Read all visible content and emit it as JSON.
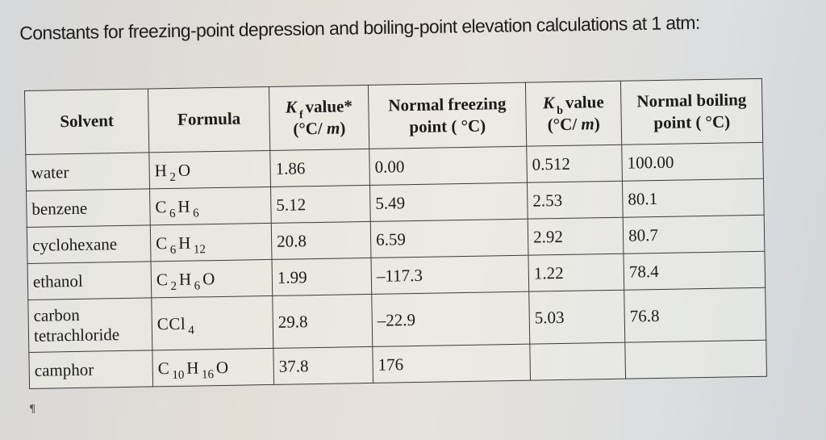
{
  "document": {
    "title": "Constants for freezing-point depression and boiling-point elevation calculations at 1 atm:",
    "paragraph_mark": "¶"
  },
  "table": {
    "headers": {
      "solvent": "Solvent",
      "formula": "Formula",
      "kf": {
        "symbol": "K",
        "subscript": "f",
        "label": "value*",
        "units_open": "(°C/ ",
        "units_var": "m",
        "units_close": ")"
      },
      "nfp": {
        "line1": "Normal freezing",
        "line2": "point ( °C)"
      },
      "kb": {
        "symbol": "K",
        "subscript": "b",
        "label": "value",
        "units_open": "(°C/ ",
        "units_var": "m",
        "units_close": ")"
      },
      "nbp": {
        "line1": "Normal boiling",
        "line2": "point ( °C)"
      }
    },
    "rows": [
      {
        "solvent": "water",
        "formula": [
          [
            "H",
            "2"
          ],
          [
            "O",
            ""
          ]
        ],
        "kf": "1.86",
        "nfp": "0.00",
        "kb": "0.512",
        "nbp": "100.00"
      },
      {
        "solvent": "benzene",
        "formula": [
          [
            "C",
            "6"
          ],
          [
            "H",
            "6"
          ]
        ],
        "kf": "5.12",
        "nfp": "5.49",
        "kb": "2.53",
        "nbp": "80.1"
      },
      {
        "solvent": "cyclohexane",
        "formula": [
          [
            "C",
            "6"
          ],
          [
            "H",
            "12"
          ]
        ],
        "kf": "20.8",
        "nfp": "6.59",
        "kb": "2.92",
        "nbp": "80.7"
      },
      {
        "solvent": "ethanol",
        "formula": [
          [
            "C",
            "2"
          ],
          [
            "H",
            "6"
          ],
          [
            "O",
            ""
          ]
        ],
        "kf": "1.99",
        "nfp": "–117.3",
        "kb": "1.22",
        "nbp": "78.4"
      },
      {
        "solvent_line1": "carbon",
        "solvent_line2": "tetrachloride",
        "formula": [
          [
            "CCl",
            "4"
          ]
        ],
        "kf": "29.8",
        "nfp": "–22.9",
        "kb": "5.03",
        "nbp": "76.8"
      },
      {
        "solvent": "camphor",
        "formula": [
          [
            "C",
            "10"
          ],
          [
            "H",
            "16"
          ],
          [
            "O",
            ""
          ]
        ],
        "kf": "37.8",
        "nfp": "176",
        "kb": "",
        "nbp": ""
      }
    ]
  }
}
